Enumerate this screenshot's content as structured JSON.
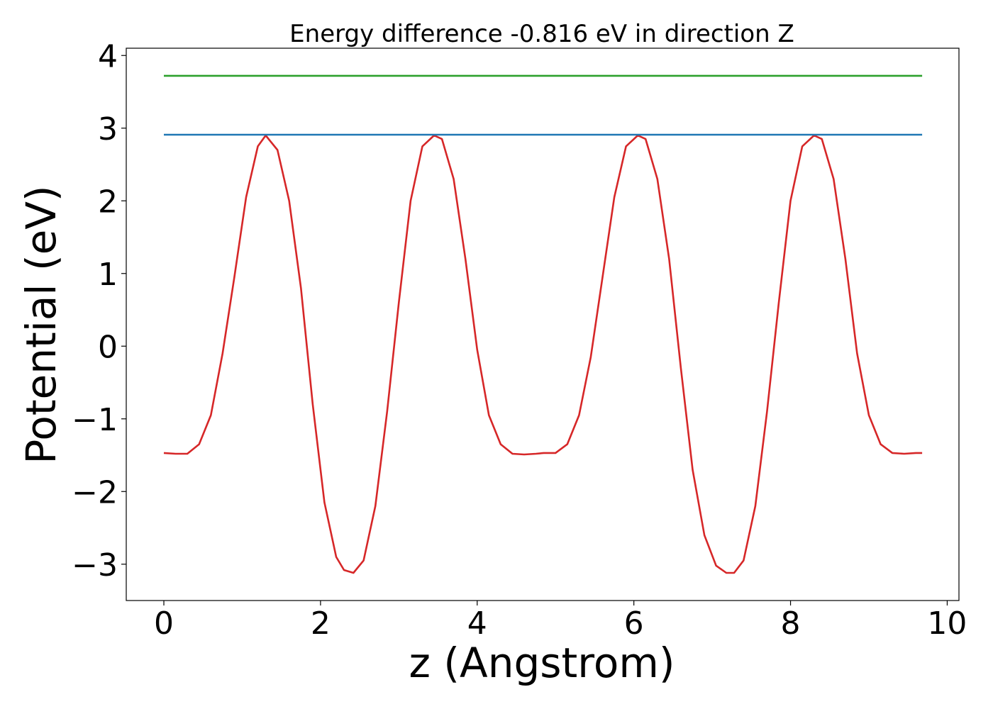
{
  "chart_data": {
    "type": "line",
    "title": "Energy difference -0.816 eV in direction Z",
    "xlabel": "z (Angstrom)",
    "ylabel": "Potential (eV)",
    "xlim": [
      -0.48,
      10.15
    ],
    "ylim": [
      -3.5,
      4.1
    ],
    "xticks": [
      0,
      2,
      4,
      6,
      8,
      10
    ],
    "xtick_labels": [
      "0",
      "2",
      "4",
      "6",
      "8",
      "10"
    ],
    "yticks": [
      -3,
      -2,
      -1,
      0,
      1,
      2,
      3,
      4
    ],
    "ytick_labels": [
      "−3",
      "−2",
      "−1",
      "0",
      "1",
      "2",
      "3",
      "4"
    ],
    "grid": false,
    "legend": "none",
    "series": [
      {
        "color": "#d62728",
        "x": [
          0.0,
          0.15,
          0.3,
          0.45,
          0.6,
          0.75,
          0.9,
          1.05,
          1.2,
          1.3,
          1.45,
          1.6,
          1.75,
          1.9,
          2.05,
          2.2,
          2.3,
          2.42,
          2.55,
          2.7,
          2.85,
          3.0,
          3.15,
          3.3,
          3.45,
          3.55,
          3.7,
          3.85,
          4.0,
          4.15,
          4.3,
          4.45,
          4.6,
          4.75,
          4.85,
          5.0,
          5.15,
          5.3,
          5.45,
          5.6,
          5.75,
          5.9,
          6.05,
          6.15,
          6.3,
          6.45,
          6.6,
          6.75,
          6.9,
          7.05,
          7.18,
          7.28,
          7.4,
          7.55,
          7.7,
          7.85,
          8.0,
          8.15,
          8.3,
          8.4,
          8.55,
          8.7,
          8.85,
          9.0,
          9.15,
          9.3,
          9.45,
          9.6,
          9.68
        ],
        "values": [
          -1.47,
          -1.48,
          -1.48,
          -1.35,
          -0.95,
          -0.1,
          0.95,
          2.05,
          2.75,
          2.9,
          2.7,
          2.0,
          0.8,
          -0.8,
          -2.15,
          -2.9,
          -3.08,
          -3.12,
          -2.95,
          -2.2,
          -0.9,
          0.6,
          2.0,
          2.75,
          2.9,
          2.85,
          2.3,
          1.2,
          -0.05,
          -0.95,
          -1.35,
          -1.48,
          -1.49,
          -1.48,
          -1.47,
          -1.47,
          -1.35,
          -0.95,
          -0.15,
          0.95,
          2.05,
          2.75,
          2.9,
          2.85,
          2.3,
          1.2,
          -0.3,
          -1.7,
          -2.6,
          -3.02,
          -3.12,
          -3.12,
          -2.95,
          -2.2,
          -0.9,
          0.6,
          2.0,
          2.75,
          2.9,
          2.85,
          2.3,
          1.2,
          -0.1,
          -0.95,
          -1.35,
          -1.47,
          -1.48,
          -1.47,
          -1.47
        ]
      },
      {
        "color": "#1f77b4",
        "x": [
          0.0,
          9.68
        ],
        "values": [
          2.91,
          2.91
        ]
      },
      {
        "color": "#2ca02c",
        "x": [
          0.0,
          9.68
        ],
        "values": [
          3.72,
          3.72
        ]
      }
    ]
  }
}
